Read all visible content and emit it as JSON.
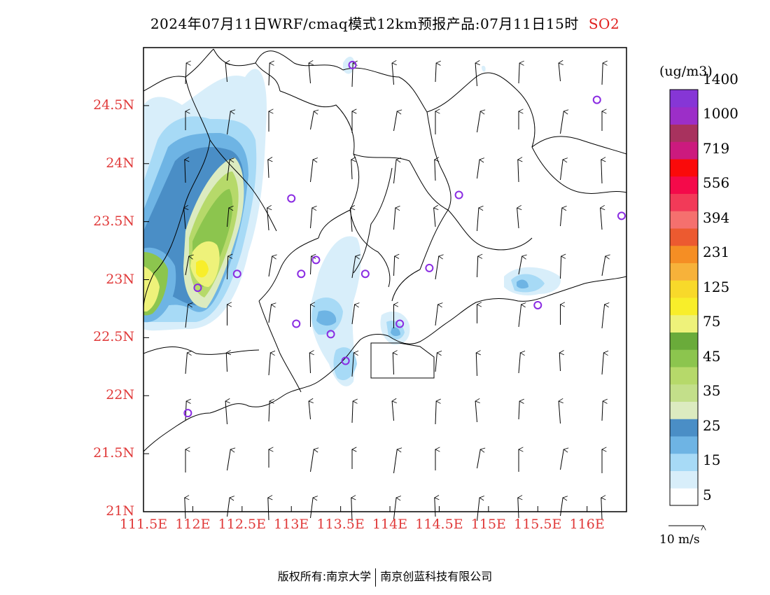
{
  "title": {
    "main": "2024年07月11日WRF/cmaq模式12km预报产品:07月11日15时",
    "pollutant": "SO2"
  },
  "map": {
    "lat_labels": [
      "24.5N",
      "24N",
      "23.5N",
      "23N",
      "22.5N",
      "22N",
      "21.5N",
      "21N"
    ],
    "lon_labels": [
      "111.5E",
      "112E",
      "112.5E",
      "113E",
      "113.5E",
      "114E",
      "114.5E",
      "115E",
      "115.5E",
      "116E"
    ],
    "lon_range": [
      111.5,
      116.4
    ],
    "lat_range": [
      21.0,
      25.0
    ],
    "wind_reference": "10 m/s",
    "wind_direction": "from south (arrows pointing north)",
    "stations": [
      {
        "lon": 113.62,
        "lat": 24.85
      },
      {
        "lon": 116.1,
        "lat": 24.55
      },
      {
        "lon": 113.0,
        "lat": 23.7
      },
      {
        "lon": 114.7,
        "lat": 23.73
      },
      {
        "lon": 116.35,
        "lat": 23.55
      },
      {
        "lon": 113.25,
        "lat": 23.17
      },
      {
        "lon": 112.45,
        "lat": 23.05
      },
      {
        "lon": 113.1,
        "lat": 23.05
      },
      {
        "lon": 113.75,
        "lat": 23.05
      },
      {
        "lon": 114.4,
        "lat": 23.1
      },
      {
        "lon": 112.05,
        "lat": 22.93
      },
      {
        "lon": 115.5,
        "lat": 22.78
      },
      {
        "lon": 113.05,
        "lat": 22.62
      },
      {
        "lon": 114.1,
        "lat": 22.62
      },
      {
        "lon": 113.4,
        "lat": 22.53
      },
      {
        "lon": 113.55,
        "lat": 22.3
      },
      {
        "lon": 111.95,
        "lat": 21.85
      }
    ]
  },
  "colorbar": {
    "unit": "(ug/m3)",
    "colors": [
      "#ffffff",
      "#d8eefa",
      "#a7daf6",
      "#6eb4e4",
      "#4a8ec6",
      "#dcebc0",
      "#c3df8a",
      "#b6d96a",
      "#8cc54e",
      "#6aab3a",
      "#eef27a",
      "#f8ee2a",
      "#f8d92a",
      "#f7b23a",
      "#f58e24",
      "#ec5a30",
      "#f5706e",
      "#f23a58",
      "#f40a4a",
      "#fa0a0a",
      "#cc1a7e",
      "#a8325e",
      "#9c2ec8",
      "#8636d6"
    ],
    "labels": [
      "5",
      "15",
      "25",
      "35",
      "45",
      "75",
      "125",
      "231",
      "394",
      "556",
      "719",
      "1000",
      "1400"
    ]
  },
  "footer": {
    "left": "版权所有:南京大学",
    "right": "南京创蓝科技有限公司"
  }
}
